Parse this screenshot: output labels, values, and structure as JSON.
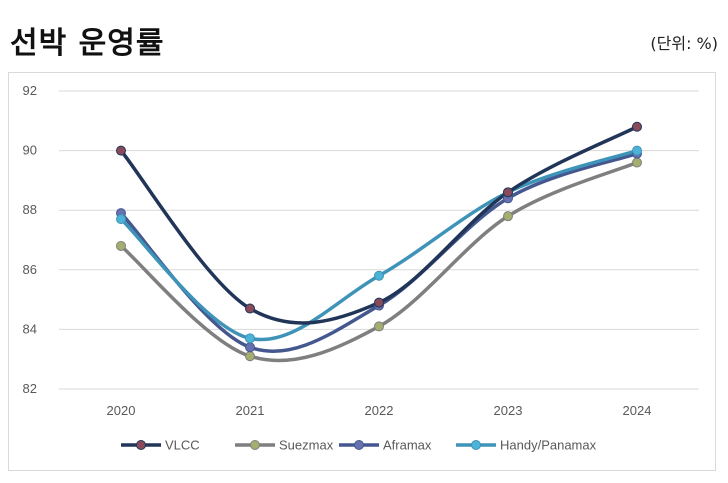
{
  "header": {
    "title": "선박 운영률",
    "unit": "(단위: %)"
  },
  "chart_data": {
    "type": "line",
    "title": "선박 운영률",
    "unit": "(단위: %)",
    "categories": [
      "2020",
      "2021",
      "2022",
      "2023",
      "2024"
    ],
    "ylim": [
      82,
      92
    ],
    "yticks": [
      "82",
      "84",
      "86",
      "88",
      "90",
      "92"
    ],
    "grid": true,
    "legend_position": "bottom",
    "smooth": true,
    "series": [
      {
        "name": "VLCC",
        "values": [
          90.0,
          84.7,
          84.9,
          88.6,
          90.8
        ],
        "line_color": "#213559",
        "marker_color": "#8a4a5a"
      },
      {
        "name": "Suezmax",
        "values": [
          86.8,
          83.1,
          84.1,
          87.8,
          89.6
        ],
        "line_color": "#7f7f7f",
        "marker_color": "#a4ae6e"
      },
      {
        "name": "Aframax",
        "values": [
          87.9,
          83.4,
          84.8,
          88.4,
          89.9
        ],
        "line_color": "#44578f",
        "marker_color": "#6672b0"
      },
      {
        "name": "Handy/Panamax",
        "values": [
          87.7,
          83.7,
          85.8,
          88.6,
          90.0
        ],
        "line_color": "#3e93b8",
        "marker_color": "#4db3d6"
      }
    ]
  }
}
